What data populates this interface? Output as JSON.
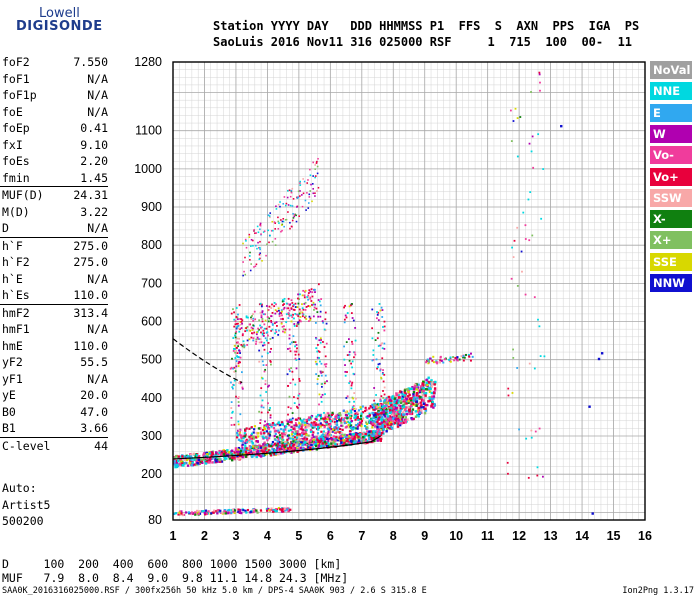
{
  "logo": {
    "line1": "Lowell",
    "line2": "DIGISONDE"
  },
  "header": {
    "line1": "Station YYYY DAY   DDD HHMMSS P1  FFS  S  AXN  PPS  IGA  PS",
    "line2": "SaoLuis 2016 Nov11 316 025000 RSF     1  715  100  00-  11"
  },
  "params": [
    {
      "key": "foF2",
      "value": "7.550"
    },
    {
      "key": "foF1",
      "value": "N/A"
    },
    {
      "key": "foF1p",
      "value": "N/A"
    },
    {
      "key": "foE",
      "value": "N/A"
    },
    {
      "key": "foEp",
      "value": "0.41"
    },
    {
      "key": "fxI",
      "value": "9.10"
    },
    {
      "key": "foEs",
      "value": "2.20"
    },
    {
      "key": "fmin",
      "value": "1.45"
    },
    {
      "key": "MUF(D)",
      "value": "24.31",
      "sep": true
    },
    {
      "key": "M(D)",
      "value": "3.22"
    },
    {
      "key": "D",
      "value": "N/A"
    },
    {
      "key": "h`F",
      "value": "275.0",
      "sep": true
    },
    {
      "key": "h`F2",
      "value": "275.0"
    },
    {
      "key": "h`E",
      "value": "N/A"
    },
    {
      "key": "h`Es",
      "value": "110.0"
    },
    {
      "key": "hmF2",
      "value": "313.4",
      "sep": true
    },
    {
      "key": "hmF1",
      "value": "N/A"
    },
    {
      "key": "hmE",
      "value": "110.0"
    },
    {
      "key": "yF2",
      "value": "55.5"
    },
    {
      "key": "yF1",
      "value": "N/A"
    },
    {
      "key": "yE",
      "value": "20.0"
    },
    {
      "key": "B0",
      "value": "47.0"
    },
    {
      "key": "B1",
      "value": "3.66"
    },
    {
      "key": "C-level",
      "value": "44",
      "sep": true
    }
  ],
  "artist": {
    "line1": "Auto:",
    "line2": "Artist5",
    "line3": "500200"
  },
  "legend": [
    {
      "label": "NoVal",
      "color": "#a0a0a0"
    },
    {
      "label": "NNE",
      "color": "#00d8e0"
    },
    {
      "label": "E",
      "color": "#30a8f0"
    },
    {
      "label": "W",
      "color": "#b000b0"
    },
    {
      "label": "Vo-",
      "color": "#f03c9c"
    },
    {
      "label": "Vo+",
      "color": "#e8003c"
    },
    {
      "label": "SSW",
      "color": "#f8a8a8"
    },
    {
      "label": "X-",
      "color": "#108010"
    },
    {
      "label": "X+",
      "color": "#80c060"
    },
    {
      "label": "SSE",
      "color": "#d8d800"
    },
    {
      "label": "NNW",
      "color": "#1010d0"
    }
  ],
  "axes": {
    "y_ticks": [
      "1280",
      "1100",
      "1000",
      "900",
      "800",
      "700",
      "600",
      "500",
      "400",
      "300",
      "200",
      "80"
    ],
    "x_ticks": [
      "1",
      "2",
      "3",
      "4",
      "5",
      "6",
      "7",
      "8",
      "9",
      "10",
      "11",
      "12",
      "13",
      "14",
      "15",
      "16"
    ]
  },
  "footer": {
    "line1": "D     100  200  400  600  800 1000 1500 3000 [km]",
    "line2": "MUF   7.9  8.0  8.4  9.0  9.8 11.1 14.8 24.3 [MHz]",
    "line3": "SAA0K_2016316025000.RSF / 300fx256h 50 kHz 5.0 km / DPS-4 SAA0K 903 / 2.6 S 315.8 E",
    "version": "Ion2Png 1.3.17"
  }
}
